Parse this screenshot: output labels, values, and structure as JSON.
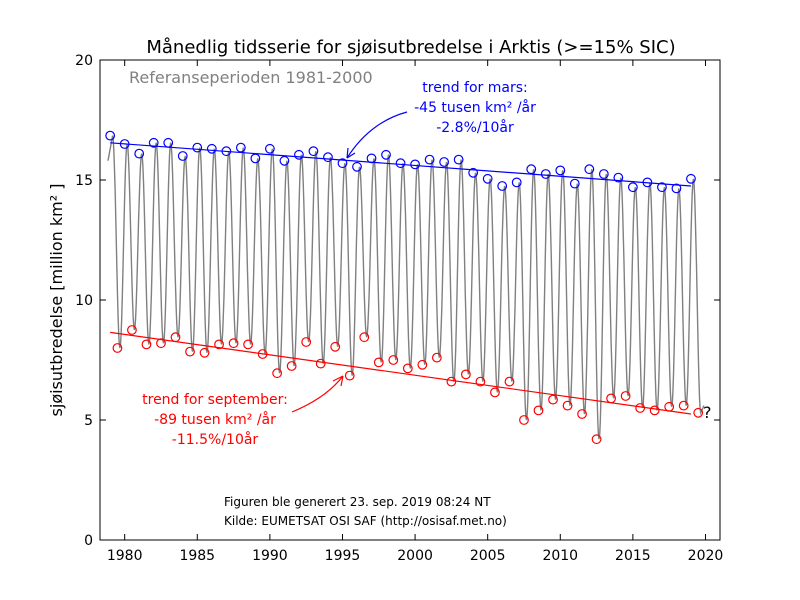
{
  "chart_data": {
    "type": "line",
    "title": "Månedlig tidsserie for sjøisutbredelse i Arktis (>=15% SIC)",
    "xlabel": "",
    "ylabel": "sjøisutbredelse [million km² ]",
    "xlim": [
      1978.3,
      2021.0
    ],
    "ylim": [
      0,
      20
    ],
    "x_ticks": [
      "1980",
      "1985",
      "1990",
      "1995",
      "2000",
      "2005",
      "2010",
      "2015",
      "2020"
    ],
    "y_ticks": [
      "0",
      "5",
      "10",
      "15",
      "20"
    ],
    "grid": false,
    "colors": {
      "march": "#0000ff",
      "september": "#ff0000",
      "series": "#808080"
    },
    "series": [
      {
        "marker": "circle-open",
        "x": [
          1979,
          1980,
          1981,
          1982,
          1983,
          1984,
          1985,
          1986,
          1987,
          1988,
          1989,
          1990,
          1991,
          1992,
          1993,
          1994,
          1995,
          1996,
          1997,
          1998,
          1999,
          2000,
          2001,
          2002,
          2003,
          2004,
          2005,
          2006,
          2007,
          2008,
          2009,
          2010,
          2011,
          2012,
          2013,
          2014,
          2015,
          2016,
          2017,
          2018,
          2019
        ],
        "march_values": [
          16.85,
          16.5,
          16.1,
          16.55,
          16.55,
          16.0,
          16.35,
          16.3,
          16.2,
          16.35,
          15.9,
          16.3,
          15.8,
          16.05,
          16.2,
          15.95,
          15.7,
          15.55,
          15.9,
          16.05,
          15.7,
          15.65,
          15.85,
          15.75,
          15.85,
          15.3,
          15.05,
          14.75,
          14.9,
          15.45,
          15.25,
          15.4,
          14.85,
          15.45,
          15.25,
          15.1,
          14.7,
          14.9,
          14.7,
          14.65,
          15.05
        ]
      },
      {
        "marker": "circle-open",
        "x": [
          1979,
          1980,
          1981,
          1982,
          1983,
          1984,
          1985,
          1986,
          1987,
          1988,
          1989,
          1990,
          1991,
          1992,
          1993,
          1994,
          1995,
          1996,
          1997,
          1998,
          1999,
          2000,
          2001,
          2002,
          2003,
          2004,
          2005,
          2006,
          2007,
          2008,
          2009,
          2010,
          2011,
          2012,
          2013,
          2014,
          2015,
          2016,
          2017,
          2018,
          2019
        ],
        "september_values": [
          8.0,
          8.75,
          8.15,
          8.2,
          8.45,
          7.85,
          7.8,
          8.15,
          8.2,
          8.15,
          7.75,
          6.95,
          7.25,
          8.25,
          7.35,
          8.05,
          6.85,
          8.45,
          7.4,
          7.5,
          7.15,
          7.3,
          7.6,
          6.6,
          6.9,
          6.6,
          6.15,
          6.6,
          5.0,
          5.4,
          5.85,
          5.6,
          5.25,
          4.2,
          5.9,
          6.0,
          5.5,
          5.4,
          5.55,
          5.6,
          5.3
        ]
      }
    ],
    "trends": [
      {
        "x": [
          1979,
          2019
        ],
        "y": [
          16.55,
          14.75
        ]
      },
      {
        "x": [
          1979,
          2019
        ],
        "y": [
          8.65,
          5.25
        ]
      }
    ],
    "annotations": {
      "reference_period": "Referanseperioden 1981-2000",
      "march_trend": [
        "trend for mars:",
        "-45 tusen km² /år",
        "-2.8%/10år"
      ],
      "september_trend": [
        "trend for september:",
        "-89 tusen km² /år",
        "-11.5%/10år"
      ],
      "question_mark": "?",
      "generated": "Figuren ble generert 23. sep. 2019 08:24 NT",
      "source": "Kilde: EUMETSAT OSI SAF (http://osisaf.met.no)"
    }
  }
}
